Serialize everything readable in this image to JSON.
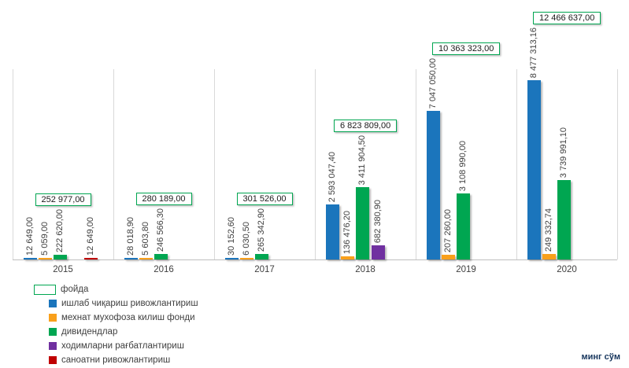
{
  "chart_data": {
    "type": "bar",
    "title": "",
    "unit_label": "минг сўм",
    "categories": [
      "2015",
      "2016",
      "2017",
      "2018",
      "2019",
      "2020"
    ],
    "series": [
      {
        "name": "ишлаб чиқариш ривожлантириш",
        "color": "#1B75BC",
        "values": [
          12649.0,
          28018.9,
          30152.6,
          2593047.4,
          7047050.0,
          8477313.16
        ],
        "labels": [
          "12 649,00",
          "28 018,90",
          "30 152,60",
          "2 593 047,40",
          "7 047 050,00",
          "8 477 313,16"
        ]
      },
      {
        "name": "мехнат мухофоза килиш фонди",
        "color": "#F9A01B",
        "values": [
          5059.0,
          5603.8,
          6030.5,
          136476.2,
          207260.0,
          249332.74
        ],
        "labels": [
          "5 059,00",
          "5 603,80",
          "6 030,50",
          "136 476,20",
          "207 260,00",
          "249 332,74"
        ]
      },
      {
        "name": "дивидендлар",
        "color": "#00A651",
        "values": [
          222620.0,
          246566.3,
          265342.9,
          3411904.5,
          3108990.0,
          3739991.1
        ],
        "labels": [
          "222 620,00",
          "246 566,30",
          "265 342,90",
          "3 411 904,50",
          "3 108 990,00",
          "3 739 991,10"
        ]
      },
      {
        "name": "ходимларни рағбатлантириш",
        "color": "#7030A0",
        "values": [
          null,
          null,
          null,
          682380.9,
          null,
          null
        ],
        "labels": [
          null,
          null,
          null,
          "682 380,90",
          null,
          null
        ]
      },
      {
        "name": "саноатни ривожлантириш",
        "color": "#C00000",
        "values": [
          12649.0,
          null,
          null,
          null,
          null,
          null
        ],
        "labels": [
          "12 649,00",
          null,
          null,
          null,
          null,
          null
        ]
      }
    ],
    "profit_series": {
      "name": "фойда",
      "border_color": "#00A651",
      "values": [
        252977.0,
        280189.0,
        301526.0,
        6823809.0,
        10363323.0,
        12466637.0
      ],
      "labels": [
        "252 977,00",
        "280 189,00",
        "301 526,00",
        "6 823 809,00",
        "10 363 323,00",
        "12 466 637,00"
      ]
    },
    "ylim": [
      0,
      9000000
    ],
    "grid": "vertical category boundary lines only",
    "legend_position": "bottom-left",
    "colors": {
      "grid_line": "#d9d9d9",
      "axis_line": "#bfbfbf",
      "label_text": "#404040",
      "unit_text": "#17365D"
    }
  }
}
